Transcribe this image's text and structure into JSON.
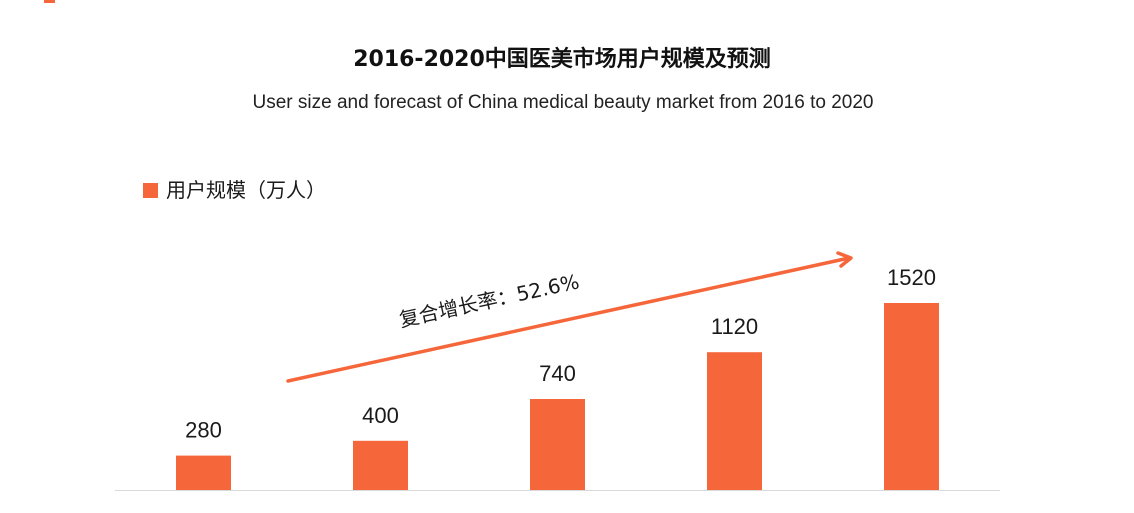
{
  "colors": {
    "accent": "#F5673A",
    "axis": "#D9D9D9"
  },
  "chart_data": {
    "type": "bar",
    "title": "2016-2020中国医美市场用户规模及预测",
    "subtitle": "User size and forecast of China medical beauty market from 2016 to 2020",
    "xlabel": "",
    "ylabel": "",
    "series": [
      {
        "name": "用户规模（万人）",
        "values": [
          280,
          400,
          740,
          1120,
          1520
        ],
        "color": "#F5673A"
      }
    ],
    "data_labels": true,
    "legend": {
      "position": "top-left"
    },
    "grid": false,
    "y_axis_visible": false,
    "annotations": [
      {
        "text": "复合增长率：52.6%",
        "kind": "trend-arrow"
      }
    ]
  }
}
